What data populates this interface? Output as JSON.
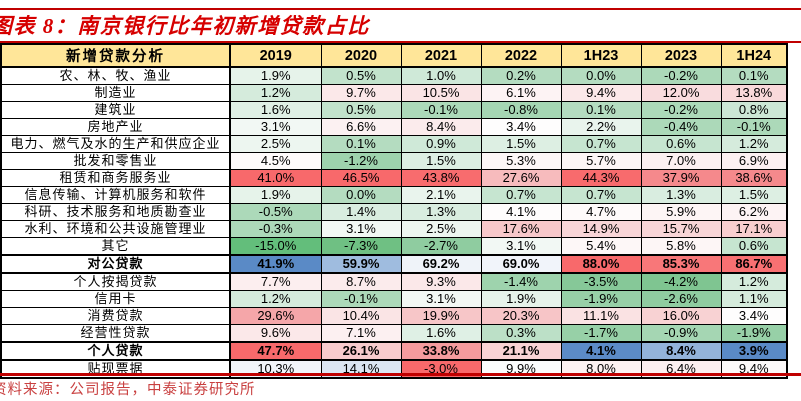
{
  "title": "图表 8：南京银行比年初新增贷款占比",
  "source": "资料来源：公司报告，中泰证券研究所",
  "ui_colors": {
    "rule_red": "#C00000",
    "title_red": "#D60000",
    "source_red": "#C94040",
    "header_bg": "#FFE699",
    "border": "#000000",
    "scale_max_red": "#F8696B",
    "scale_min_green": "#63BE7B",
    "scale_min_blue": "#5A8AC6"
  },
  "chart_data": {
    "type": "table",
    "title": "图表 8：南京银行比年初新增贷款占比",
    "columns": [
      "新增贷款分析",
      "2019",
      "2020",
      "2021",
      "2022",
      "1H23",
      "2023",
      "1H24"
    ],
    "rows": [
      {
        "label": "农、林、牧、渔业",
        "bold": false,
        "values": [
          "1.9%",
          "0.5%",
          "1.0%",
          "0.2%",
          "0.0%",
          "-0.2%",
          "0.1%"
        ],
        "colors": [
          "#E6F3EA",
          "#C2E3CC",
          "#CFE9D8",
          "#B4DCC0",
          "#B4DCC0",
          "#ACD9B9",
          "#B4DCC0"
        ]
      },
      {
        "label": "制造业",
        "bold": false,
        "values": [
          "1.2%",
          "9.7%",
          "10.5%",
          "6.1%",
          "9.4%",
          "12.0%",
          "13.8%"
        ],
        "colors": [
          "#D5EBDC",
          "#FBE8E9",
          "#FAE4E5",
          "#FDF3F4",
          "#FBE8E9",
          "#F9DCDE",
          "#F9D9DA"
        ]
      },
      {
        "label": "建筑业",
        "bold": false,
        "values": [
          "1.6%",
          "0.5%",
          "-0.1%",
          "-0.8%",
          "0.1%",
          "-0.2%",
          "0.8%"
        ],
        "colors": [
          "#DFF0E5",
          "#C2E3CC",
          "#ACD9B9",
          "#A5D6B3",
          "#B4DCC0",
          "#ACD9B9",
          "#CCE7D5"
        ]
      },
      {
        "label": "房地产业",
        "bold": false,
        "values": [
          "3.1%",
          "6.6%",
          "8.4%",
          "3.4%",
          "2.2%",
          "-0.4%",
          "-0.1%"
        ],
        "colors": [
          "#F2F8F4",
          "#FCF1F2",
          "#FBEBEC",
          "#FEFDFD",
          "#E9F4ED",
          "#ACD9B9",
          "#ACD9B9"
        ]
      },
      {
        "label": "电力、燃气及水的生产和供应企业",
        "bold": false,
        "values": [
          "2.5%",
          "0.1%",
          "0.9%",
          "1.5%",
          "0.7%",
          "0.6%",
          "1.2%"
        ],
        "colors": [
          "#EDF6F0",
          "#B4DCC0",
          "#CFE9D8",
          "#DDEFE3",
          "#C6E5D0",
          "#C6E5D0",
          "#D5EBDC"
        ]
      },
      {
        "label": "批发和零售业",
        "bold": false,
        "values": [
          "4.5%",
          "-1.2%",
          "1.5%",
          "5.3%",
          "5.7%",
          "7.0%",
          "6.9%"
        ],
        "colors": [
          "#FEFBFB",
          "#9ED3AD",
          "#DDEFE3",
          "#FDF7F7",
          "#FDF6F6",
          "#FCF0F1",
          "#FCF0F1"
        ]
      },
      {
        "label": "租赁和商务服务业",
        "bold": false,
        "values": [
          "41.0%",
          "46.5%",
          "43.8%",
          "27.6%",
          "44.3%",
          "37.9%",
          "38.6%"
        ],
        "colors": [
          "#F8696B",
          "#F8696B",
          "#F86C6E",
          "#F7BBBD",
          "#F86B6D",
          "#F5898C",
          "#F5898C"
        ]
      },
      {
        "label": "信息传输、计算机服务和软件",
        "bold": false,
        "values": [
          "1.9%",
          "0.0%",
          "2.1%",
          "0.7%",
          "0.7%",
          "1.3%",
          "1.5%"
        ],
        "colors": [
          "#E6F3EA",
          "#B4DCC0",
          "#E9F4ED",
          "#C6E5D0",
          "#C6E5D0",
          "#D9EDE0",
          "#DDEFE3"
        ]
      },
      {
        "label": "科研、技术服务和地质勘查业",
        "bold": false,
        "values": [
          "-0.5%",
          "1.4%",
          "1.3%",
          "4.1%",
          "4.7%",
          "5.9%",
          "6.2%"
        ],
        "colors": [
          "#ACD9B9",
          "#D9EDE0",
          "#D9EDE0",
          "#FEFCFC",
          "#FEFAFA",
          "#FDF5F5",
          "#FDF3F4"
        ]
      },
      {
        "label": "水利、环境和公共设施管理业",
        "bold": false,
        "values": [
          "-0.3%",
          "3.1%",
          "2.5%",
          "17.6%",
          "14.9%",
          "15.7%",
          "17.1%"
        ],
        "colors": [
          "#ACD9B9",
          "#F2F8F4",
          "#EDF6F0",
          "#F7C8CA",
          "#F8D5D7",
          "#F8D5D7",
          "#F8CECF"
        ]
      },
      {
        "label": "其它",
        "bold": false,
        "values": [
          "-15.0%",
          "-7.3%",
          "-2.7%",
          "3.1%",
          "5.4%",
          "5.8%",
          "0.6%"
        ],
        "colors": [
          "#63BE7B",
          "#6FC083",
          "#8FCCA0",
          "#F2F8F4",
          "#FDF7F7",
          "#FDF6F6",
          "#C6E5D0"
        ]
      },
      {
        "label": "对公贷款",
        "bold": true,
        "values": [
          "41.9%",
          "59.9%",
          "69.2%",
          "69.0%",
          "88.0%",
          "85.3%",
          "86.7%"
        ],
        "colors": [
          "#5A8AC6",
          "#9FBCDF",
          "#EFF3F9",
          "#F1F4FA",
          "#F8696B",
          "#F87779",
          "#F87072"
        ]
      },
      {
        "label": "个人按揭贷款",
        "bold": false,
        "values": [
          "7.7%",
          "8.7%",
          "9.3%",
          "-1.4%",
          "-3.5%",
          "-4.2%",
          "1.2%"
        ],
        "colors": [
          "#FCEEEF",
          "#FBEBEC",
          "#FBE8E9",
          "#9ED3AD",
          "#86C898",
          "#7FC591",
          "#D5EBDC"
        ]
      },
      {
        "label": "信用卡",
        "bold": false,
        "values": [
          "1.2%",
          "-0.1%",
          "3.1%",
          "1.9%",
          "-1.9%",
          "-2.6%",
          "1.1%"
        ],
        "colors": [
          "#D5EBDC",
          "#ACD9B9",
          "#F2F8F4",
          "#E6F3EA",
          "#97D0A7",
          "#8FCCA0",
          "#D5EBDC"
        ]
      },
      {
        "label": "消费贷款",
        "bold": false,
        "values": [
          "29.6%",
          "10.4%",
          "19.9%",
          "20.3%",
          "11.1%",
          "16.0%",
          "3.4%"
        ],
        "colors": [
          "#F5A6A9",
          "#FAE4E5",
          "#F7C6C8",
          "#F7C5C7",
          "#FAE2E3",
          "#F8D2D3",
          "#FEFDFD"
        ]
      },
      {
        "label": "经营性贷款",
        "bold": false,
        "values": [
          "9.6%",
          "7.1%",
          "1.6%",
          "0.3%",
          "-1.7%",
          "-0.9%",
          "-1.9%"
        ],
        "colors": [
          "#FBE8E9",
          "#FCF0F1",
          "#DFF0E5",
          "#BCE0C7",
          "#97D0A7",
          "#A5D6B3",
          "#97D0A7"
        ]
      },
      {
        "label": "个人贷款",
        "bold": true,
        "values": [
          "47.7%",
          "26.1%",
          "33.8%",
          "21.1%",
          "4.1%",
          "8.4%",
          "3.9%"
        ],
        "colors": [
          "#F8696B",
          "#F8CBCD",
          "#F59B9E",
          "#F9D3D5",
          "#5C8BC7",
          "#93B3DA",
          "#5A8AC6"
        ]
      },
      {
        "label": "贴现票据",
        "bold": false,
        "values": [
          "10.3%",
          "14.1%",
          "-3.0%",
          "9.9%",
          "8.0%",
          "6.4%",
          "9.4%"
        ],
        "colors": [
          "#F2F5FA",
          "#DCE6F2",
          "#F8696B",
          "#FBFCFD",
          "#FDF2F2",
          "#FCEFF0",
          "#FCF9F9"
        ]
      }
    ],
    "source": "资料来源：公司报告，中泰证券研究所"
  }
}
